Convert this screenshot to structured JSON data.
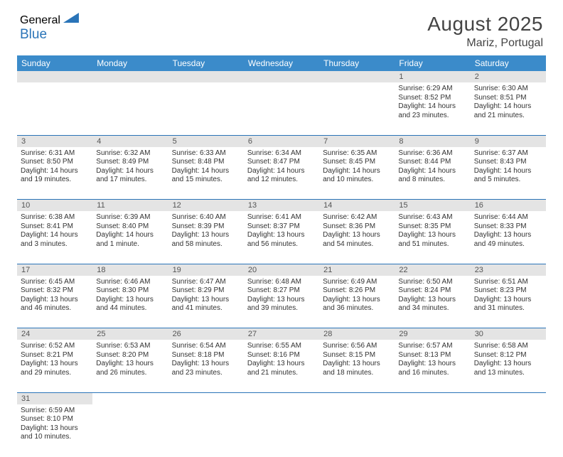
{
  "logo": {
    "text1": "General",
    "text2": "Blue"
  },
  "header": {
    "month": "August 2025",
    "location": "Mariz, Portugal"
  },
  "styling": {
    "accent": "#3b8bca",
    "rule": "#2a74b8",
    "daynum_bg": "#e4e4e4",
    "text": "#333333",
    "heading_text": "#444444",
    "body_font_size": 10,
    "title_font_size": 28
  },
  "weekdays": [
    "Sunday",
    "Monday",
    "Tuesday",
    "Wednesday",
    "Thursday",
    "Friday",
    "Saturday"
  ],
  "weeks": [
    [
      null,
      null,
      null,
      null,
      null,
      {
        "d": "1",
        "sr": "Sunrise: 6:29 AM",
        "ss": "Sunset: 8:52 PM",
        "dl1": "Daylight: 14 hours",
        "dl2": "and 23 minutes."
      },
      {
        "d": "2",
        "sr": "Sunrise: 6:30 AM",
        "ss": "Sunset: 8:51 PM",
        "dl1": "Daylight: 14 hours",
        "dl2": "and 21 minutes."
      }
    ],
    [
      {
        "d": "3",
        "sr": "Sunrise: 6:31 AM",
        "ss": "Sunset: 8:50 PM",
        "dl1": "Daylight: 14 hours",
        "dl2": "and 19 minutes."
      },
      {
        "d": "4",
        "sr": "Sunrise: 6:32 AM",
        "ss": "Sunset: 8:49 PM",
        "dl1": "Daylight: 14 hours",
        "dl2": "and 17 minutes."
      },
      {
        "d": "5",
        "sr": "Sunrise: 6:33 AM",
        "ss": "Sunset: 8:48 PM",
        "dl1": "Daylight: 14 hours",
        "dl2": "and 15 minutes."
      },
      {
        "d": "6",
        "sr": "Sunrise: 6:34 AM",
        "ss": "Sunset: 8:47 PM",
        "dl1": "Daylight: 14 hours",
        "dl2": "and 12 minutes."
      },
      {
        "d": "7",
        "sr": "Sunrise: 6:35 AM",
        "ss": "Sunset: 8:45 PM",
        "dl1": "Daylight: 14 hours",
        "dl2": "and 10 minutes."
      },
      {
        "d": "8",
        "sr": "Sunrise: 6:36 AM",
        "ss": "Sunset: 8:44 PM",
        "dl1": "Daylight: 14 hours",
        "dl2": "and 8 minutes."
      },
      {
        "d": "9",
        "sr": "Sunrise: 6:37 AM",
        "ss": "Sunset: 8:43 PM",
        "dl1": "Daylight: 14 hours",
        "dl2": "and 5 minutes."
      }
    ],
    [
      {
        "d": "10",
        "sr": "Sunrise: 6:38 AM",
        "ss": "Sunset: 8:41 PM",
        "dl1": "Daylight: 14 hours",
        "dl2": "and 3 minutes."
      },
      {
        "d": "11",
        "sr": "Sunrise: 6:39 AM",
        "ss": "Sunset: 8:40 PM",
        "dl1": "Daylight: 14 hours",
        "dl2": "and 1 minute."
      },
      {
        "d": "12",
        "sr": "Sunrise: 6:40 AM",
        "ss": "Sunset: 8:39 PM",
        "dl1": "Daylight: 13 hours",
        "dl2": "and 58 minutes."
      },
      {
        "d": "13",
        "sr": "Sunrise: 6:41 AM",
        "ss": "Sunset: 8:37 PM",
        "dl1": "Daylight: 13 hours",
        "dl2": "and 56 minutes."
      },
      {
        "d": "14",
        "sr": "Sunrise: 6:42 AM",
        "ss": "Sunset: 8:36 PM",
        "dl1": "Daylight: 13 hours",
        "dl2": "and 54 minutes."
      },
      {
        "d": "15",
        "sr": "Sunrise: 6:43 AM",
        "ss": "Sunset: 8:35 PM",
        "dl1": "Daylight: 13 hours",
        "dl2": "and 51 minutes."
      },
      {
        "d": "16",
        "sr": "Sunrise: 6:44 AM",
        "ss": "Sunset: 8:33 PM",
        "dl1": "Daylight: 13 hours",
        "dl2": "and 49 minutes."
      }
    ],
    [
      {
        "d": "17",
        "sr": "Sunrise: 6:45 AM",
        "ss": "Sunset: 8:32 PM",
        "dl1": "Daylight: 13 hours",
        "dl2": "and 46 minutes."
      },
      {
        "d": "18",
        "sr": "Sunrise: 6:46 AM",
        "ss": "Sunset: 8:30 PM",
        "dl1": "Daylight: 13 hours",
        "dl2": "and 44 minutes."
      },
      {
        "d": "19",
        "sr": "Sunrise: 6:47 AM",
        "ss": "Sunset: 8:29 PM",
        "dl1": "Daylight: 13 hours",
        "dl2": "and 41 minutes."
      },
      {
        "d": "20",
        "sr": "Sunrise: 6:48 AM",
        "ss": "Sunset: 8:27 PM",
        "dl1": "Daylight: 13 hours",
        "dl2": "and 39 minutes."
      },
      {
        "d": "21",
        "sr": "Sunrise: 6:49 AM",
        "ss": "Sunset: 8:26 PM",
        "dl1": "Daylight: 13 hours",
        "dl2": "and 36 minutes."
      },
      {
        "d": "22",
        "sr": "Sunrise: 6:50 AM",
        "ss": "Sunset: 8:24 PM",
        "dl1": "Daylight: 13 hours",
        "dl2": "and 34 minutes."
      },
      {
        "d": "23",
        "sr": "Sunrise: 6:51 AM",
        "ss": "Sunset: 8:23 PM",
        "dl1": "Daylight: 13 hours",
        "dl2": "and 31 minutes."
      }
    ],
    [
      {
        "d": "24",
        "sr": "Sunrise: 6:52 AM",
        "ss": "Sunset: 8:21 PM",
        "dl1": "Daylight: 13 hours",
        "dl2": "and 29 minutes."
      },
      {
        "d": "25",
        "sr": "Sunrise: 6:53 AM",
        "ss": "Sunset: 8:20 PM",
        "dl1": "Daylight: 13 hours",
        "dl2": "and 26 minutes."
      },
      {
        "d": "26",
        "sr": "Sunrise: 6:54 AM",
        "ss": "Sunset: 8:18 PM",
        "dl1": "Daylight: 13 hours",
        "dl2": "and 23 minutes."
      },
      {
        "d": "27",
        "sr": "Sunrise: 6:55 AM",
        "ss": "Sunset: 8:16 PM",
        "dl1": "Daylight: 13 hours",
        "dl2": "and 21 minutes."
      },
      {
        "d": "28",
        "sr": "Sunrise: 6:56 AM",
        "ss": "Sunset: 8:15 PM",
        "dl1": "Daylight: 13 hours",
        "dl2": "and 18 minutes."
      },
      {
        "d": "29",
        "sr": "Sunrise: 6:57 AM",
        "ss": "Sunset: 8:13 PM",
        "dl1": "Daylight: 13 hours",
        "dl2": "and 16 minutes."
      },
      {
        "d": "30",
        "sr": "Sunrise: 6:58 AM",
        "ss": "Sunset: 8:12 PM",
        "dl1": "Daylight: 13 hours",
        "dl2": "and 13 minutes."
      }
    ],
    [
      {
        "d": "31",
        "sr": "Sunrise: 6:59 AM",
        "ss": "Sunset: 8:10 PM",
        "dl1": "Daylight: 13 hours",
        "dl2": "and 10 minutes."
      },
      null,
      null,
      null,
      null,
      null,
      null
    ]
  ]
}
